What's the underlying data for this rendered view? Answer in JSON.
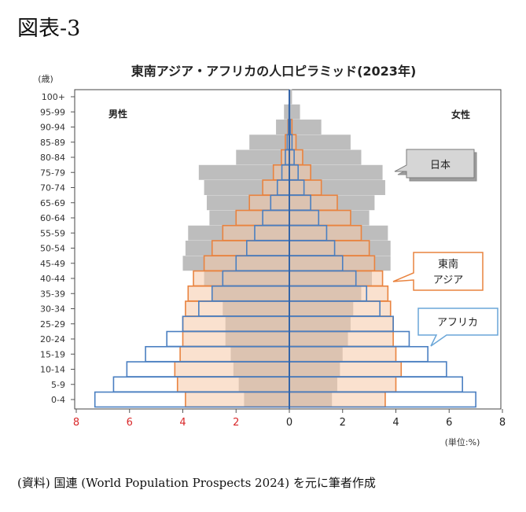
{
  "figure_label": "図表-3",
  "source_note": "(資料) 国連 (World Population Prospects 2024) を元に筆者作成",
  "chart_data": {
    "type": "bar",
    "orientation": "horizontal-population-pyramid",
    "title": "東南アジア・アフリカの人口ピラミッド(2023年)",
    "ylabel": "(歳)",
    "unit_label": "(単位:%)",
    "left_label": "男性",
    "right_label": "女性",
    "xlim": [
      -8,
      8
    ],
    "x_ticks": [
      -8,
      -6,
      -4,
      -2,
      0,
      2,
      4,
      6,
      8
    ],
    "x_tick_labels": [
      "8",
      "6",
      "4",
      "2",
      "0",
      "2",
      "4",
      "6",
      "8"
    ],
    "categories": [
      "0-4",
      "5-9",
      "10-14",
      "15-19",
      "20-24",
      "25-29",
      "30-34",
      "35-39",
      "40-44",
      "45-49",
      "50-54",
      "55-59",
      "60-64",
      "65-69",
      "70-74",
      "75-79",
      "80-84",
      "85-89",
      "90-94",
      "95-99",
      "100+"
    ],
    "series": [
      {
        "name": "日本",
        "color": "#bdbdbd",
        "male": [
          1.7,
          1.9,
          2.1,
          2.2,
          2.4,
          2.4,
          2.5,
          2.9,
          3.2,
          4.0,
          3.9,
          3.8,
          3.0,
          3.1,
          3.2,
          3.4,
          2.0,
          1.5,
          0.5,
          0.2,
          0.0
        ],
        "female": [
          1.6,
          1.8,
          1.9,
          2.0,
          2.2,
          2.3,
          2.4,
          2.7,
          3.1,
          3.8,
          3.8,
          3.7,
          3.0,
          3.2,
          3.6,
          3.5,
          2.7,
          2.3,
          1.2,
          0.4,
          0.1
        ]
      },
      {
        "name": "東南アジア",
        "color": "#e9833f",
        "male": [
          3.9,
          4.2,
          4.3,
          4.1,
          4.0,
          4.0,
          3.9,
          3.8,
          3.6,
          3.2,
          2.9,
          2.5,
          2.0,
          1.5,
          1.0,
          0.6,
          0.3,
          0.15,
          0.05,
          0.0,
          0.0
        ],
        "female": [
          3.6,
          4.0,
          4.2,
          4.0,
          3.9,
          3.9,
          3.8,
          3.7,
          3.5,
          3.2,
          3.0,
          2.7,
          2.3,
          1.8,
          1.2,
          0.8,
          0.5,
          0.25,
          0.1,
          0.0,
          0.0
        ],
        "label": "東南\nアジア"
      },
      {
        "name": "アフリカ",
        "color": "#4a7fc1",
        "male": [
          7.3,
          6.6,
          6.1,
          5.4,
          4.6,
          4.0,
          3.4,
          2.9,
          2.5,
          2.0,
          1.6,
          1.3,
          1.0,
          0.7,
          0.45,
          0.28,
          0.15,
          0.08,
          0.03,
          0.01,
          0.0
        ],
        "female": [
          7.0,
          6.5,
          5.9,
          5.2,
          4.5,
          3.9,
          3.4,
          2.9,
          2.5,
          2.0,
          1.7,
          1.4,
          1.1,
          0.8,
          0.55,
          0.33,
          0.18,
          0.1,
          0.04,
          0.01,
          0.0
        ]
      }
    ],
    "callouts": {
      "japan": "日本",
      "sea": "東南\nアジア",
      "africa": "アフリカ"
    },
    "grid": false
  }
}
